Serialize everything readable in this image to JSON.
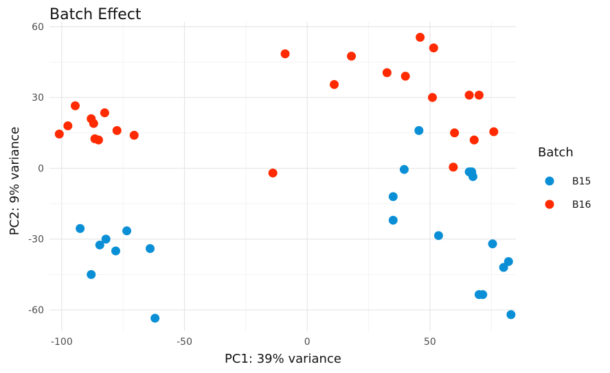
{
  "chart_data": {
    "type": "scatter",
    "title": "Batch Effect",
    "xlabel": "PC1: 39% variance",
    "ylabel": "PC2: 9% variance",
    "xlim": [
      -105,
      85
    ],
    "ylim": [
      -69,
      62
    ],
    "xticks": [
      -100,
      -50,
      0,
      50
    ],
    "yticks": [
      60,
      30,
      0,
      -30,
      -60
    ],
    "grid": true,
    "legend": {
      "title": "Batch",
      "position": "right"
    },
    "series": [
      {
        "name": "B15",
        "color": "#0a8fd6",
        "points": [
          [
            -92.5,
            -25.5
          ],
          [
            -84.5,
            -32.5
          ],
          [
            -82,
            -30
          ],
          [
            -73.5,
            -26.5
          ],
          [
            -78,
            -35
          ],
          [
            -88,
            -45
          ],
          [
            -64,
            -34
          ],
          [
            -62,
            -63.5
          ],
          [
            45.5,
            16
          ],
          [
            39.5,
            -0.5
          ],
          [
            35,
            -12
          ],
          [
            35,
            -22
          ],
          [
            53.5,
            -28.5
          ],
          [
            66,
            -1.5
          ],
          [
            67,
            -1.5
          ],
          [
            67.5,
            -3.5
          ],
          [
            75.5,
            -32
          ],
          [
            82,
            -39.5
          ],
          [
            80,
            -42
          ],
          [
            70,
            -53.5
          ],
          [
            71.5,
            -53.5
          ],
          [
            83,
            -62
          ]
        ]
      },
      {
        "name": "B16",
        "color": "#ff2a00",
        "points": [
          [
            -101,
            14.5
          ],
          [
            -97.5,
            18
          ],
          [
            -94.5,
            26.5
          ],
          [
            -88,
            21
          ],
          [
            -87,
            19
          ],
          [
            -86.5,
            12.5
          ],
          [
            -85,
            12
          ],
          [
            -82.5,
            23.5
          ],
          [
            -77.5,
            16
          ],
          [
            -70.5,
            14
          ],
          [
            -9,
            48.5
          ],
          [
            -14,
            -2
          ],
          [
            11,
            35.5
          ],
          [
            18,
            47.5
          ],
          [
            32.5,
            40.5
          ],
          [
            40,
            39
          ],
          [
            46,
            55.5
          ],
          [
            51.5,
            51
          ],
          [
            51,
            30
          ],
          [
            60,
            15
          ],
          [
            59.5,
            0.5
          ],
          [
            66,
            31
          ],
          [
            70,
            31
          ],
          [
            68,
            12
          ],
          [
            76,
            15.5
          ]
        ]
      }
    ]
  }
}
